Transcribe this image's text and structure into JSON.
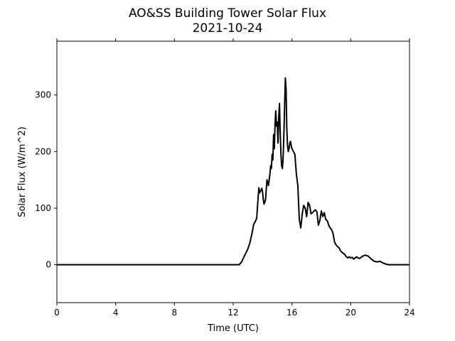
{
  "chart_data": {
    "type": "line",
    "title": "AO&SS Building Tower Solar Flux",
    "subtitle": "2021-10-24",
    "xlabel": "Time (UTC)",
    "ylabel": "Solar Flux (W/m^2)",
    "xlim": [
      0,
      24
    ],
    "ylim": [
      -67,
      395
    ],
    "x_ticks": [
      0,
      4,
      8,
      12,
      16,
      20,
      24
    ],
    "y_ticks": [
      0,
      100,
      200,
      300
    ],
    "grid": false,
    "line_color": "#000000",
    "series": [
      {
        "x": [
          0,
          12.4,
          12.55,
          12.7,
          12.85,
          13.0,
          13.15,
          13.3,
          13.4,
          13.5,
          13.6,
          13.7,
          13.75,
          13.8,
          13.85,
          13.9,
          13.95,
          14.0,
          14.05,
          14.1,
          14.2,
          14.3,
          14.4,
          14.45,
          14.5,
          14.55,
          14.6,
          14.65,
          14.7,
          14.75,
          14.8,
          14.85,
          14.9,
          14.95,
          15.0,
          15.05,
          15.1,
          15.15,
          15.2,
          15.25,
          15.3,
          15.35,
          15.4,
          15.45,
          15.5,
          15.55,
          15.6,
          15.65,
          15.7,
          15.75,
          15.8,
          15.85,
          15.9,
          15.95,
          16.0,
          16.1,
          16.2,
          16.3,
          16.4,
          16.5,
          16.6,
          16.7,
          16.8,
          16.9,
          17.0,
          17.1,
          17.2,
          17.3,
          17.4,
          17.5,
          17.6,
          17.7,
          17.8,
          17.9,
          18.0,
          18.1,
          18.2,
          18.3,
          18.4,
          18.5,
          18.6,
          18.7,
          18.8,
          18.9,
          19.0,
          19.1,
          19.2,
          19.3,
          19.4,
          19.5,
          19.6,
          19.7,
          19.8,
          19.9,
          20.0,
          20.1,
          20.2,
          20.3,
          20.4,
          20.5,
          20.6,
          20.8,
          21.0,
          21.2,
          21.4,
          21.6,
          21.8,
          22.0,
          22.2,
          22.4,
          22.6,
          22.8,
          23.0,
          23.2,
          23.5,
          24.0
        ],
        "y": [
          0,
          0,
          4,
          12,
          20,
          28,
          40,
          58,
          72,
          76,
          82,
          120,
          136,
          127,
          130,
          132,
          135,
          128,
          115,
          107,
          115,
          150,
          140,
          150,
          160,
          175,
          170,
          195,
          185,
          230,
          205,
          250,
          272,
          245,
          252,
          215,
          260,
          285,
          235,
          195,
          175,
          170,
          190,
          230,
          280,
          330,
          310,
          240,
          210,
          200,
          205,
          215,
          218,
          210,
          205,
          200,
          195,
          160,
          140,
          80,
          65,
          90,
          105,
          100,
          85,
          110,
          105,
          90,
          92,
          95,
          97,
          93,
          70,
          78,
          95,
          85,
          92,
          80,
          78,
          70,
          65,
          62,
          55,
          40,
          35,
          32,
          30,
          25,
          22,
          20,
          18,
          14,
          12,
          14,
          12,
          13,
          10,
          12,
          14,
          12,
          11,
          15,
          17,
          15,
          10,
          6,
          5,
          6,
          3,
          1,
          0,
          0,
          0,
          0,
          0,
          0
        ]
      }
    ]
  }
}
